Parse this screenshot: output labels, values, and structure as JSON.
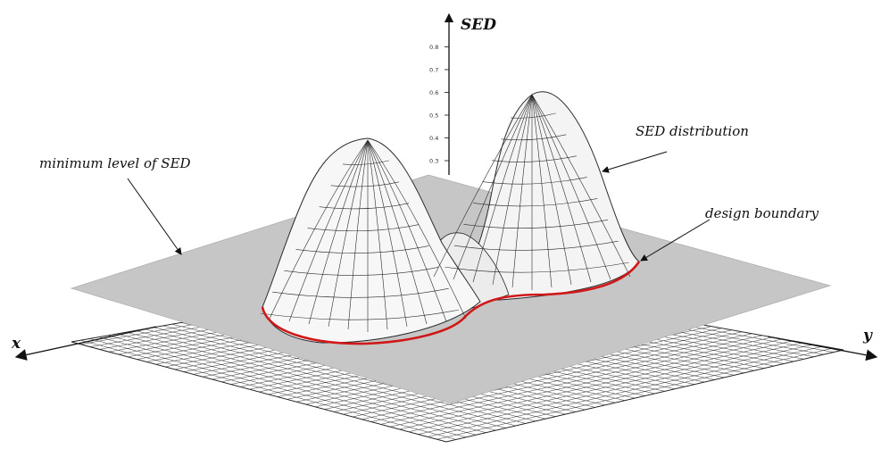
{
  "axes": {
    "vertical": "SED",
    "x": "x",
    "y": "y",
    "ticks": [
      "0.3",
      "0.4",
      "0.5",
      "0.6",
      "0.7",
      "0.8"
    ]
  },
  "annotations": {
    "minimum_level": "minimum level of SED",
    "distribution": "SED distribution",
    "boundary": "design boundary"
  },
  "colors": {
    "plane": "#c6c6c6",
    "mesh": "#2a2a2a",
    "surface": "#f4f4f4",
    "boundary": "#d01818"
  }
}
